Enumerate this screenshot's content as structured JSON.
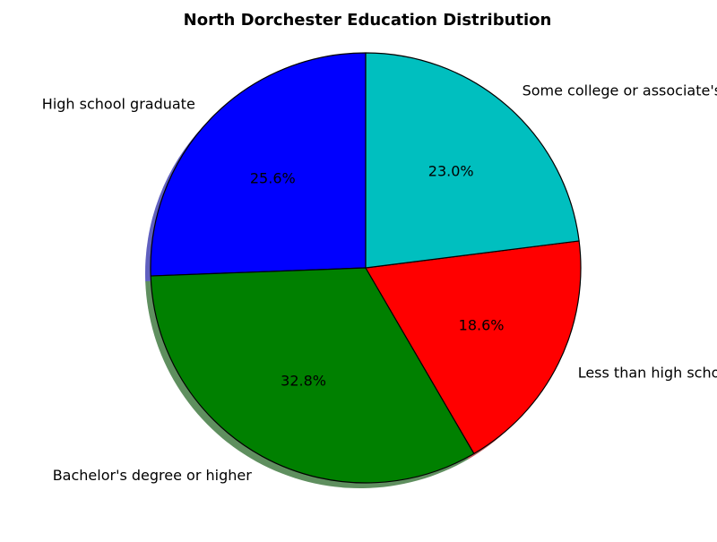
{
  "chart_data": {
    "type": "pie",
    "title": "North Dorchester Education Distribution",
    "start_angle_deg": 90,
    "direction": "counterclockwise",
    "shadow": true,
    "edge_color": "#000000",
    "slices": [
      {
        "label": "High school graduate",
        "value": 25.6,
        "pct_label": "25.6%",
        "color": "#0000ff"
      },
      {
        "label": "Bachelor's degree or higher",
        "value": 32.8,
        "pct_label": "32.8%",
        "color": "#008000"
      },
      {
        "label": "Less than high school",
        "value": 18.6,
        "pct_label": "18.6%",
        "color": "#ff0000"
      },
      {
        "label": "Some college or associate's degree",
        "value": 23.0,
        "pct_label": "23.0%",
        "color": "#00bfbf"
      }
    ]
  }
}
